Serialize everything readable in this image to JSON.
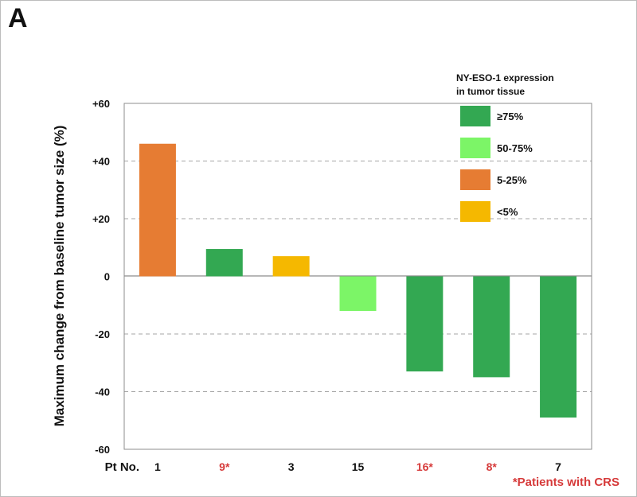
{
  "panel_label": "A",
  "colors": {
    "ge75": "#33a852",
    "50to75": "#7cf567",
    "5to25": "#e67c33",
    "lt5": "#f5b800",
    "crs_label": "#d63a3a",
    "grid": "#a6a6a6"
  },
  "legend": {
    "title_line1": "NY-ESO-1 expression",
    "title_line2": "in tumor tissue",
    "items": [
      {
        "label": "≥75%",
        "color_key": "ge75"
      },
      {
        "label": "50-75%",
        "color_key": "50to75"
      },
      {
        "label": "5-25%",
        "color_key": "5to25"
      },
      {
        "label": "<5%",
        "color_key": "lt5"
      }
    ]
  },
  "footnote": "*Patients with CRS",
  "chart_data": {
    "type": "bar",
    "title": "",
    "ylabel": "Maximum change from baseline tumor size (%)",
    "xlabel": "Pt No.",
    "ylim": [
      -60,
      60
    ],
    "yticks": [
      60,
      40,
      20,
      0,
      -20,
      -40,
      -60
    ],
    "ytick_labels": [
      "+60",
      "+40",
      "+20",
      "0",
      "-20",
      "-40",
      "-60"
    ],
    "grid": "dashed horizontal at ±20, ±40",
    "legend_position": "top-right",
    "categories": [
      "1",
      "9*",
      "3",
      "15",
      "16*",
      "8*",
      "7"
    ],
    "values": [
      46,
      9.5,
      7,
      -12,
      -33,
      -35,
      -49
    ],
    "crs": [
      false,
      true,
      false,
      false,
      true,
      true,
      false
    ],
    "expression_group": [
      "5to25",
      "ge75",
      "lt5",
      "50to75",
      "ge75",
      "ge75",
      "ge75"
    ]
  }
}
